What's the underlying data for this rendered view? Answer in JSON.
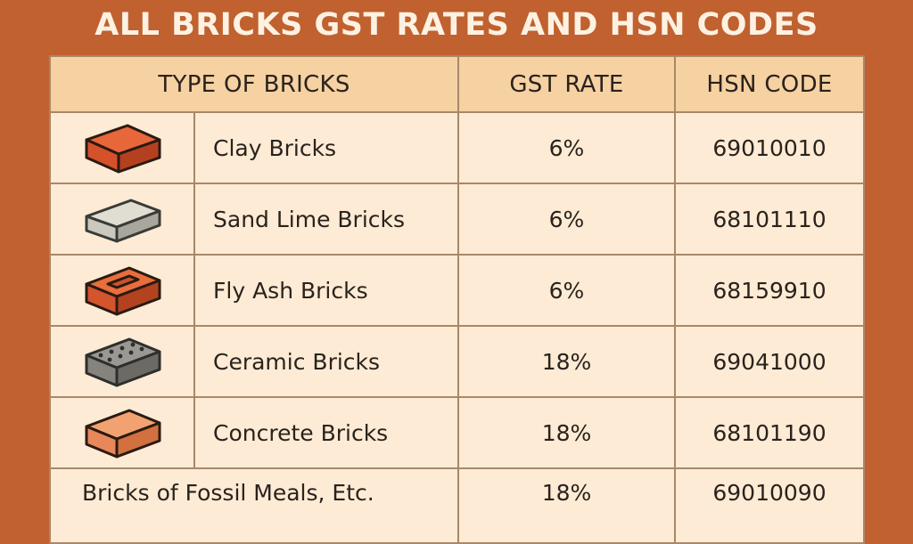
{
  "title": "ALL BRICKS GST RATES AND HSN CODES",
  "table": {
    "headers": {
      "type": "TYPE OF BRICKS",
      "gst": "GST RATE",
      "hsn": "HSN CODE"
    },
    "rows": [
      {
        "icon": "clay-brick-icon",
        "name": "Clay Bricks",
        "gst": "6%",
        "hsn": "69010010"
      },
      {
        "icon": "sand-lime-brick-icon",
        "name": "Sand Lime Bricks",
        "gst": "6%",
        "hsn": "68101110"
      },
      {
        "icon": "fly-ash-brick-icon",
        "name": "Fly Ash Bricks",
        "gst": "6%",
        "hsn": "68159910"
      },
      {
        "icon": "ceramic-brick-icon",
        "name": "Ceramic Bricks",
        "gst": "18%",
        "hsn": "69041000"
      },
      {
        "icon": "concrete-brick-icon",
        "name": "Concrete Bricks",
        "gst": "18%",
        "hsn": "68101190"
      },
      {
        "name": "Bricks of Fossil Meals, Etc.",
        "gst": "18%",
        "hsn": "69010090"
      }
    ]
  },
  "colors": {
    "background": "#c0612f",
    "header_bg": "#f6d1a2",
    "row_bg": "#fdebd5",
    "title_text": "#fdf1e2"
  }
}
